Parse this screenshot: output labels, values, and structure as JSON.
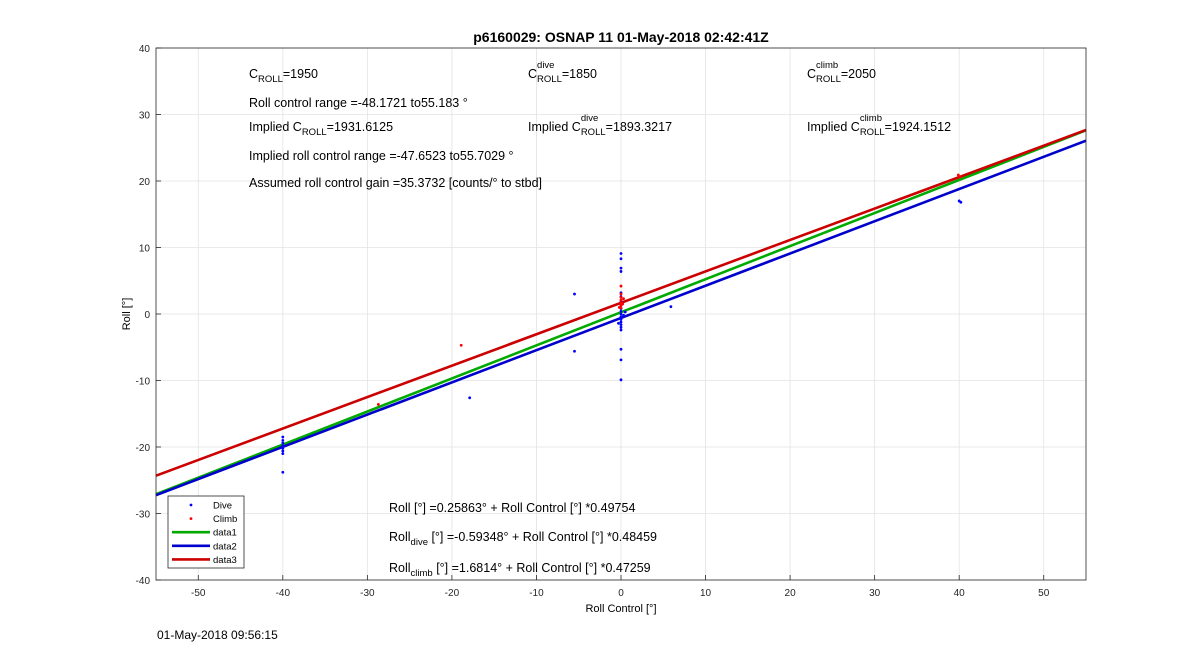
{
  "chart_data": {
    "type": "scatter",
    "title": "p6160029: OSNAP 11 01-May-2018 02:42:41Z",
    "xlabel": "Roll Control [°]",
    "ylabel": "Roll [°]",
    "xlim": [
      -55,
      55
    ],
    "ylim": [
      -40,
      40
    ],
    "xticks": [
      "-50",
      "-40",
      "-30",
      "-20",
      "-10",
      "0",
      "10",
      "20",
      "30",
      "40",
      "50"
    ],
    "yticks": [
      "40",
      "30",
      "20",
      "10",
      "0",
      "-10",
      "-20",
      "-30",
      "-40"
    ],
    "grid": true,
    "legend_position": "bottom-left",
    "legend": [
      {
        "label": "Dive",
        "kind": "marker",
        "color": "#0000ff"
      },
      {
        "label": "Climb",
        "kind": "marker",
        "color": "#ff0000"
      },
      {
        "label": "data1",
        "kind": "line",
        "color": "#00aa00"
      },
      {
        "label": "data2",
        "kind": "line",
        "color": "#0000cc"
      },
      {
        "label": "data3",
        "kind": "line",
        "color": "#cc0000"
      }
    ],
    "lines": [
      {
        "name": "data1",
        "intercept": 0.25863,
        "slope": 0.49754,
        "color": "#00aa00"
      },
      {
        "name": "data2",
        "intercept": -0.59348,
        "slope": 0.48459,
        "color": "#0000cc"
      },
      {
        "name": "data3",
        "intercept": 1.6814,
        "slope": 0.47259,
        "color": "#cc0000"
      }
    ],
    "series": [
      {
        "name": "Dive",
        "color": "#0000ff",
        "points": [
          [
            -40,
            -18.5
          ],
          [
            -40,
            -19.0
          ],
          [
            -40,
            -19.4
          ],
          [
            -40,
            -19.8
          ],
          [
            -40,
            -20.2
          ],
          [
            -40,
            -20.6
          ],
          [
            -40,
            -21.0
          ],
          [
            -40,
            -23.8
          ],
          [
            -17.9,
            -12.6
          ],
          [
            -5.5,
            3.0
          ],
          [
            -5.5,
            -5.6
          ],
          [
            0,
            9.1
          ],
          [
            0,
            8.3
          ],
          [
            0,
            6.9
          ],
          [
            0,
            6.4
          ],
          [
            0,
            3.2
          ],
          [
            0,
            2.6
          ],
          [
            0,
            1.9
          ],
          [
            0,
            1.3
          ],
          [
            0,
            0.8
          ],
          [
            0,
            0.4
          ],
          [
            0,
            0.0
          ],
          [
            0,
            -0.4
          ],
          [
            0,
            -0.8
          ],
          [
            0,
            -1.2
          ],
          [
            0,
            -1.6
          ],
          [
            0,
            -2.0
          ],
          [
            0,
            -2.4
          ],
          [
            0,
            -5.3
          ],
          [
            0,
            -6.9
          ],
          [
            0,
            -9.9
          ],
          [
            -0.3,
            -1.4
          ],
          [
            0.3,
            -0.2
          ],
          [
            0.5,
            0.3
          ],
          [
            5.9,
            1.1
          ],
          [
            40,
            17.0
          ],
          [
            40.2,
            16.8
          ]
        ]
      },
      {
        "name": "Climb",
        "color": "#ff0000",
        "points": [
          [
            -28.7,
            -13.6
          ],
          [
            -18.9,
            -4.7
          ],
          [
            0,
            4.2
          ],
          [
            0,
            3.0
          ],
          [
            0,
            2.5
          ],
          [
            0,
            2.1
          ],
          [
            0,
            1.7
          ],
          [
            0,
            1.3
          ],
          [
            0,
            0.9
          ],
          [
            0.2,
            1.5
          ],
          [
            0.3,
            2.3
          ],
          [
            -0.2,
            1.0
          ],
          [
            39.9,
            20.9
          ],
          [
            40.1,
            20.6
          ]
        ]
      }
    ],
    "annotations": [
      {
        "sym": "C",
        "sub": "ROLL",
        "sup": "",
        "text": "=1950"
      },
      {
        "sym": "C",
        "sub": "ROLL",
        "sup": "dive",
        "text": "=1850"
      },
      {
        "sym": "C",
        "sub": "ROLL",
        "sup": "climb",
        "text": "=2050"
      },
      {
        "sym": "",
        "sub": "",
        "sup": "",
        "text": "Roll control range =-48.1721 to55.183 °"
      },
      {
        "pre": "Implied ",
        "sym": "C",
        "sub": "ROLL",
        "sup": "",
        "text": "=1931.6125"
      },
      {
        "pre": "Implied ",
        "sym": "C",
        "sub": "ROLL",
        "sup": "dive",
        "text": "=1893.3217"
      },
      {
        "pre": "Implied ",
        "sym": "C",
        "sub": "ROLL",
        "sup": "climb",
        "text": "=1924.1512"
      },
      {
        "sym": "",
        "sub": "",
        "sup": "",
        "text": "Implied roll control range =-47.6523 to55.7029 °"
      },
      {
        "sym": "",
        "sub": "",
        "sup": "",
        "text": "Assumed roll control gain =35.3732 [counts/° to stbd]"
      },
      {
        "sym": "",
        "sub": "",
        "sup": "",
        "text": "Roll [°] =0.25863° + Roll Control [°] *0.49754"
      },
      {
        "sym": "Roll",
        "sub": "dive",
        "sup": "",
        "text": " [°] =-0.59348° + Roll Control [°] *0.48459"
      },
      {
        "sym": "Roll",
        "sub": "climb",
        "sup": "",
        "text": " [°] =1.6814° + Roll Control [°] *0.47259"
      }
    ]
  },
  "timestamp": "01-May-2018 09:56:15"
}
